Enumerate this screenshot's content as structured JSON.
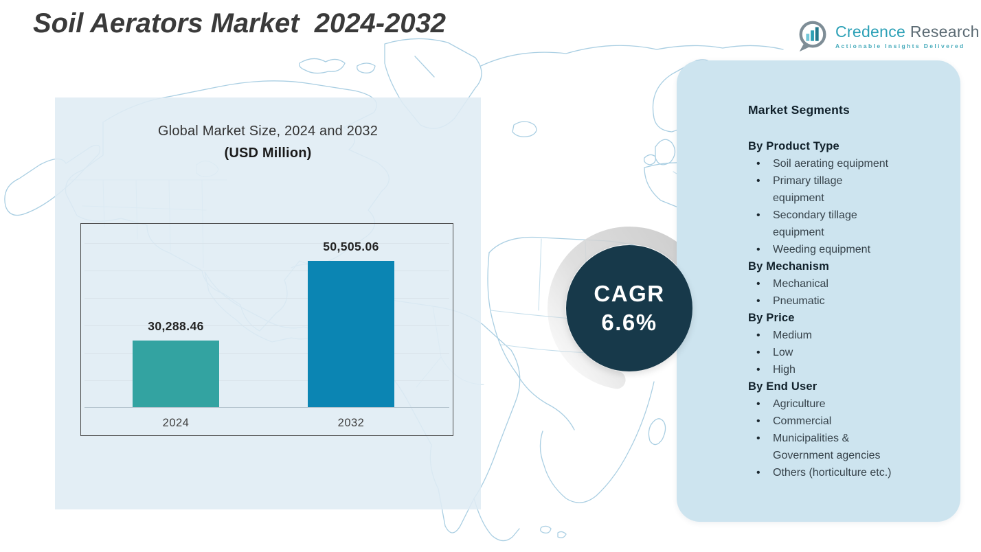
{
  "page": {
    "title": "Soil Aerators Market  2024-2032"
  },
  "logo": {
    "brand_primary": "Credence",
    "brand_secondary": "Research",
    "tagline": "Actionable Insights Delivered"
  },
  "chart_data": {
    "type": "bar",
    "title": "Global Market Size, 2024 and 2032",
    "subtitle": "(USD Million)",
    "categories": [
      "2024",
      "2032"
    ],
    "values": [
      30288.46,
      50505.06
    ],
    "value_labels": [
      "30,288.46",
      "50,505.06"
    ],
    "bar_colors": [
      "#33a3a1",
      "#0b85b3"
    ],
    "xlabel": "",
    "ylabel": "",
    "ylim": [
      13500,
      60000
    ],
    "grid": true,
    "legend": false
  },
  "cagr": {
    "label": "CAGR",
    "value": "6.6%"
  },
  "segments": {
    "heading": "Market Segments",
    "groups": [
      {
        "heading": "By Product Type",
        "items": [
          "Soil aerating equipment",
          "Primary tillage\nequipment",
          "Secondary tillage\nequipment",
          "Weeding equipment"
        ]
      },
      {
        "heading": "By Mechanism",
        "items": [
          "Mechanical",
          "Pneumatic"
        ]
      },
      {
        "heading": "By Price",
        "items": [
          "Medium",
          "Low",
          "High"
        ]
      },
      {
        "heading": "By End User",
        "items": [
          "Agriculture",
          "Commercial",
          "Municipalities &\nGovernment agencies",
          "Others (horticulture etc.)"
        ]
      }
    ]
  },
  "colors": {
    "bar_2024": "#33a3a1",
    "bar_2032": "#0b85b3",
    "cagr_circle": "#17394a",
    "panel_background": "#cde4ef",
    "chart_overlay": "#e0ecf4",
    "map_stroke": "#a5cce1",
    "brand_teal": "#2ba0b6",
    "brand_gray": "#5b6a73"
  }
}
